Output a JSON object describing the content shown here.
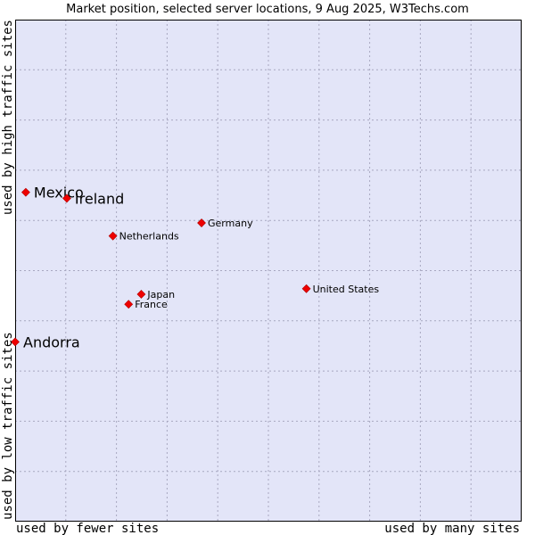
{
  "chart_data": {
    "type": "scatter",
    "title": "Market position, selected server locations, 9 Aug 2025, W3Techs.com",
    "x_axis": {
      "low_label": "used by fewer sites",
      "high_label": "used by many sites",
      "range": [
        0,
        100
      ]
    },
    "y_axis": {
      "low_label": "used by low traffic sites",
      "high_label": "used by high traffic sites",
      "range": [
        0,
        100
      ]
    },
    "grid": true,
    "colors": {
      "plot_background": "#e3e5f8",
      "point": "#ee0000",
      "grid": "#a8a8c0"
    },
    "points": [
      {
        "name": "Mexico",
        "x": 2.1,
        "y": 65.6,
        "emphasis": true
      },
      {
        "name": "Ireland",
        "x": 10.2,
        "y": 64.4,
        "emphasis": true
      },
      {
        "name": "Andorra",
        "x": 0.0,
        "y": 35.8,
        "emphasis": true
      },
      {
        "name": "Germany",
        "x": 36.8,
        "y": 59.5,
        "emphasis": false
      },
      {
        "name": "Netherlands",
        "x": 19.3,
        "y": 56.9,
        "emphasis": false
      },
      {
        "name": "United States",
        "x": 57.5,
        "y": 46.4,
        "emphasis": false
      },
      {
        "name": "Japan",
        "x": 24.9,
        "y": 45.3,
        "emphasis": false
      },
      {
        "name": "France",
        "x": 22.4,
        "y": 43.3,
        "emphasis": false
      }
    ]
  }
}
